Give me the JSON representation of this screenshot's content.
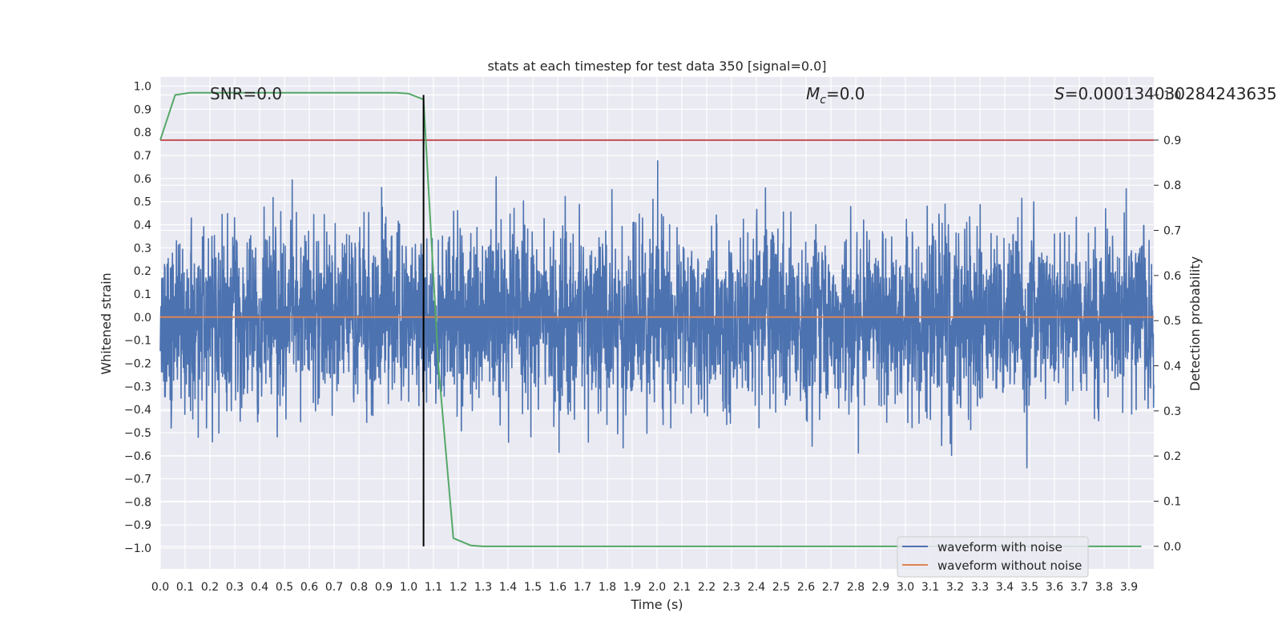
{
  "chart_data": {
    "type": "line",
    "title": "stats at each timestep for test data 350 [signal=0.0]",
    "xlabel": "Time (s)",
    "ylabel": "Whitened strain",
    "y2label": "Detection probability",
    "xlim": [
      0.0,
      4.0
    ],
    "ylim": [
      -1.09,
      1.04
    ],
    "y2lim": [
      -0.05,
      1.04
    ],
    "x_ticks": [
      "0.0",
      "0.1",
      "0.2",
      "0.3",
      "0.4",
      "0.5",
      "0.6",
      "0.7",
      "0.8",
      "0.9",
      "1.0",
      "1.1",
      "1.2",
      "1.3",
      "1.4",
      "1.5",
      "1.6",
      "1.7",
      "1.8",
      "1.9",
      "2.0",
      "2.1",
      "2.2",
      "2.3",
      "2.4",
      "2.5",
      "2.6",
      "2.7",
      "2.8",
      "2.9",
      "3.0",
      "3.1",
      "3.2",
      "3.3",
      "3.4",
      "3.5",
      "3.6",
      "3.7",
      "3.8",
      "3.9"
    ],
    "y_ticks": [
      "1.0",
      "0.9",
      "0.8",
      "0.7",
      "0.6",
      "0.5",
      "0.4",
      "0.3",
      "0.2",
      "0.1",
      "0.0",
      "−0.1",
      "−0.2",
      "−0.3",
      "−0.4",
      "−0.5",
      "−0.6",
      "−0.7",
      "−0.8",
      "−0.9",
      "−1.0"
    ],
    "y2_ticks": [
      "1.0",
      "0.9",
      "0.8",
      "0.7",
      "0.6",
      "0.5",
      "0.4",
      "0.3",
      "0.2",
      "0.1",
      "0.0"
    ],
    "grid": true,
    "legend_position": "lower-right",
    "annotations": {
      "snr": "SNR=0.0",
      "mc_symbol": "M",
      "mc_sub": "c",
      "mc_value": "=0.0",
      "s_symbol": "S",
      "s_value": "=0.00013403028424363​5"
    },
    "series": [
      {
        "name": "waveform with noise",
        "color": "#4c72b0",
        "axis": "left",
        "description_values": "dense noise, x from 0.0 to 4.0, amplitude within about -1.0 to 0.93"
      },
      {
        "name": "waveform without noise",
        "color": "#dd8452",
        "axis": "left",
        "x": [
          0.0,
          4.0
        ],
        "y": [
          0.0,
          0.0
        ]
      },
      {
        "name": "detection probability",
        "color": "#55a868",
        "axis": "right",
        "x": [
          0.0,
          0.06,
          0.12,
          0.2,
          0.4,
          0.6,
          0.8,
          0.95,
          1.0,
          1.06,
          1.12,
          1.18,
          1.25,
          1.3,
          1.5,
          2.0,
          3.0,
          3.95
        ],
        "y": [
          0.9,
          1.0,
          1.005,
          1.005,
          1.005,
          1.005,
          1.005,
          1.005,
          1.003,
          0.99,
          0.4,
          0.018,
          0.002,
          0.0,
          0.0,
          0.0,
          0.0,
          0.0
        ]
      }
    ],
    "threshold": {
      "axis": "right",
      "value": 0.9,
      "color": "#c44e52"
    },
    "marker_line": {
      "x": 1.06,
      "color": "#000000"
    }
  }
}
